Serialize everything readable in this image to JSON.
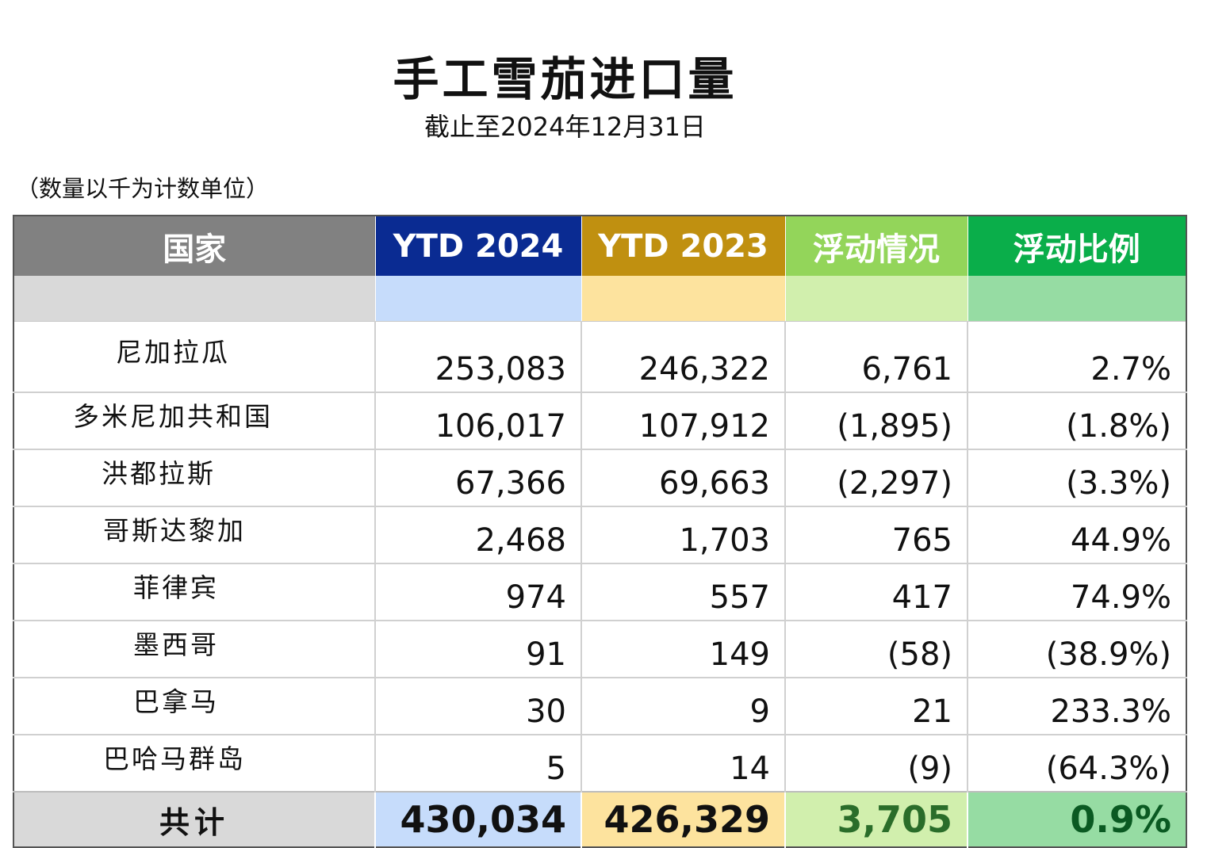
{
  "title": "手工雪茄进口量",
  "subtitle": "截止至2024年12月31日",
  "unit_note": "（数量以千为计数单位）",
  "colors": {
    "country_header": "#818181",
    "ytd2024_header": "#0a2b92",
    "ytd2023_header": "#c09010",
    "change_header": "#93d55a",
    "ratio_header": "#0aae4a",
    "country_light": "#d9d9d9",
    "ytd2024_light": "#c6dcfb",
    "ytd2023_light": "#fde39e",
    "change_light": "#d1efad",
    "ratio_light": "#96dca3",
    "total_change_text": "#2a6d2a",
    "total_ratio_text": "#0a5a22"
  },
  "headers": [
    "国家",
    "YTD 2024",
    "YTD 2023",
    "浮动情况",
    "浮动比例"
  ],
  "rows": [
    {
      "country": "尼加拉瓜",
      "ytd2024": "253,083",
      "ytd2023": "246,322",
      "change": "6,761",
      "ratio": "2.7%"
    },
    {
      "country": "多米尼加共和国",
      "ytd2024": "106,017",
      "ytd2023": "107,912",
      "change": "(1,895)",
      "ratio": "(1.8%)"
    },
    {
      "country": "洪都拉斯",
      "ytd2024": "67,366",
      "ytd2023": "69,663",
      "change": "(2,297)",
      "ratio": "(3.3%)"
    },
    {
      "country": "哥斯达黎加",
      "ytd2024": "2,468",
      "ytd2023": "1,703",
      "change": "765",
      "ratio": "44.9%"
    },
    {
      "country": "菲律宾",
      "ytd2024": "974",
      "ytd2023": "557",
      "change": "417",
      "ratio": "74.9%"
    },
    {
      "country": "墨西哥",
      "ytd2024": "91",
      "ytd2023": "149",
      "change": "(58)",
      "ratio": "(38.9%)"
    },
    {
      "country": "巴拿马",
      "ytd2024": "30",
      "ytd2023": "9",
      "change": "21",
      "ratio": "233.3%"
    },
    {
      "country": "巴哈马群岛",
      "ytd2024": "5",
      "ytd2023": "14",
      "change": "(9)",
      "ratio": "(64.3%)"
    }
  ],
  "total": {
    "label": "共计",
    "ytd2024": "430,034",
    "ytd2023": "426,329",
    "change": "3,705",
    "ratio": "0.9%"
  }
}
